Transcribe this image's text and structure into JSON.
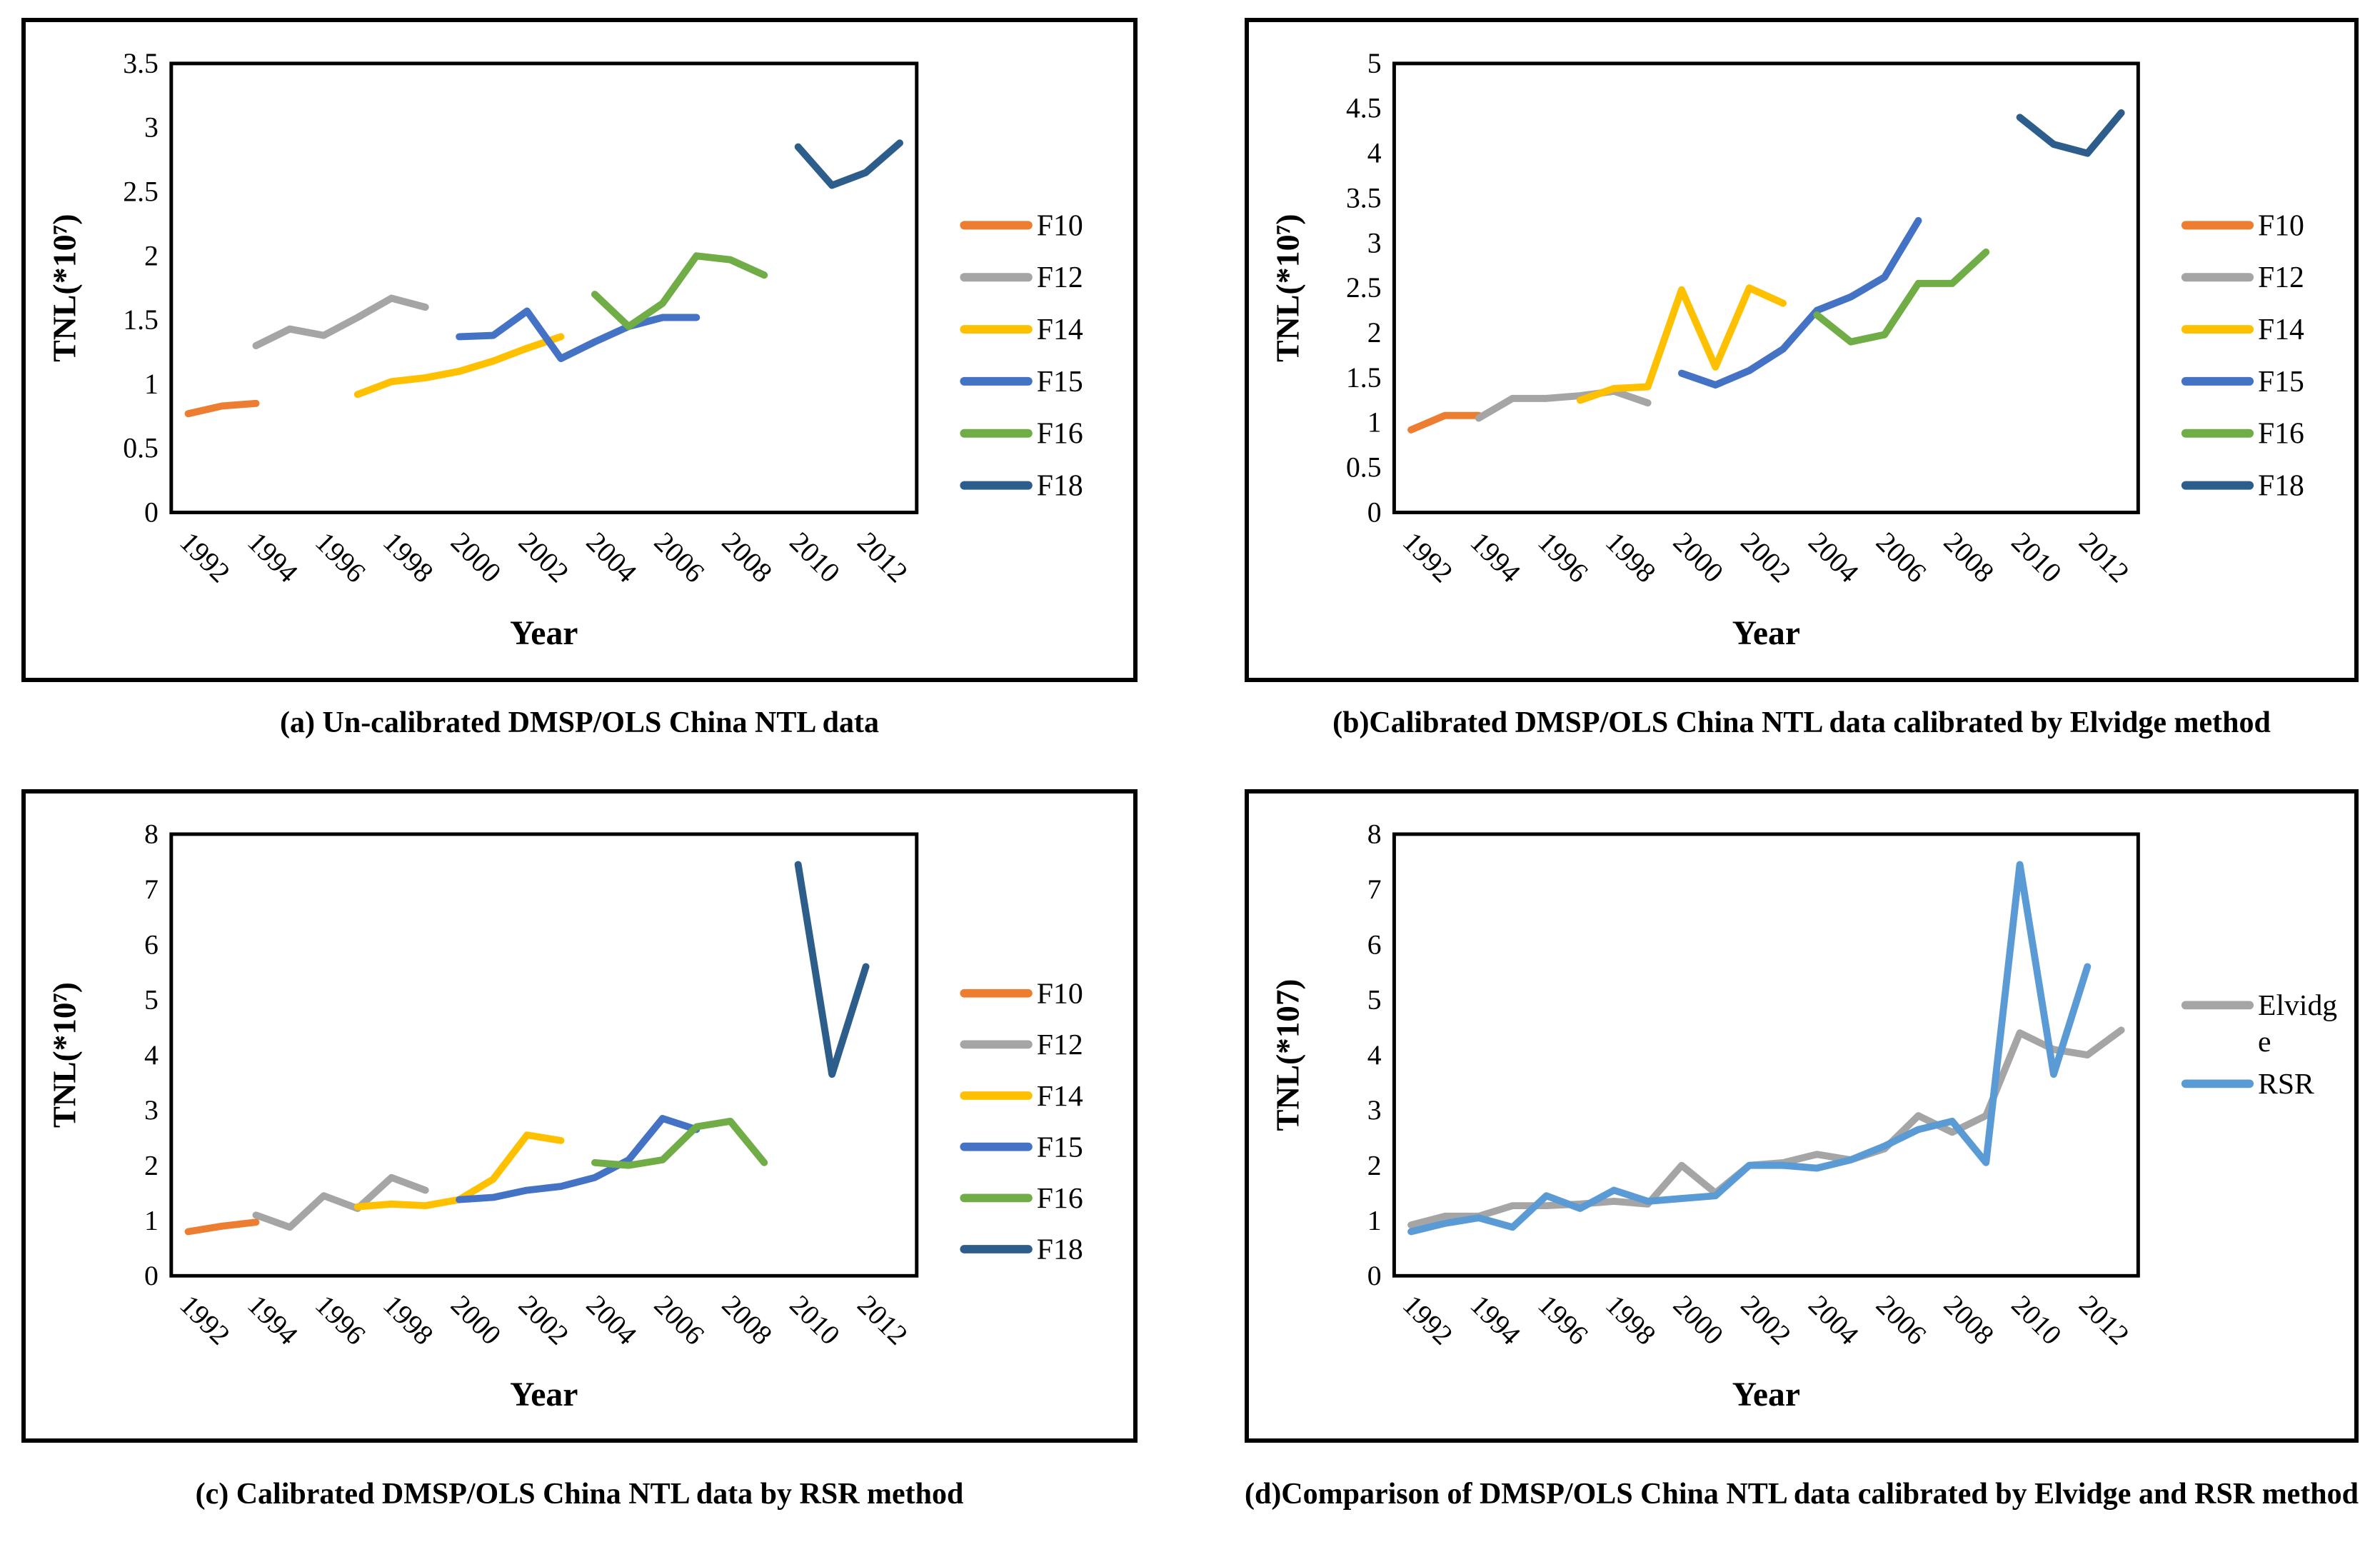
{
  "page": {
    "background": "#ffffff",
    "figure_type": "2x2 line chart grid"
  },
  "chart_data": [
    {
      "id": "a",
      "type": "line",
      "caption": "(a) Un-calibrated DMSP/OLS China NTL data",
      "ylabel": "TNL(*10⁷)",
      "xlabel": "Year",
      "ylim": [
        0,
        3.5
      ],
      "ystep": 0.5,
      "x_start": 1992,
      "x_end": 2013,
      "x_tick_labels": [
        "1992",
        "1994",
        "1996",
        "1998",
        "2000",
        "2002",
        "2004",
        "2006",
        "2008",
        "2010",
        "2012"
      ],
      "grid": false,
      "legend_position": "right",
      "series": [
        {
          "name": "F10",
          "color": "#ED7D31",
          "start_year": 1992,
          "values": [
            0.77,
            0.83,
            0.85
          ]
        },
        {
          "name": "F12",
          "color": "#A5A5A5",
          "start_year": 1994,
          "values": [
            1.3,
            1.43,
            1.38,
            1.52,
            1.67,
            1.6
          ]
        },
        {
          "name": "F14",
          "color": "#FFC000",
          "start_year": 1997,
          "values": [
            0.92,
            1.02,
            1.05,
            1.1,
            1.18,
            1.28,
            1.37
          ]
        },
        {
          "name": "F15",
          "color": "#4472C4",
          "start_year": 2000,
          "values": [
            1.37,
            1.38,
            1.57,
            1.2,
            1.33,
            1.45,
            1.52,
            1.52
          ]
        },
        {
          "name": "F16",
          "color": "#70AD47",
          "start_year": 2004,
          "values": [
            1.7,
            1.45,
            1.63,
            2.0,
            1.97,
            1.85
          ]
        },
        {
          "name": "F18",
          "color": "#2D5E8B",
          "start_year": 2010,
          "values": [
            2.85,
            2.55,
            2.65,
            2.88
          ]
        }
      ]
    },
    {
      "id": "b",
      "type": "line",
      "caption": "(b)Calibrated DMSP/OLS China NTL data calibrated by Elvidge method",
      "ylabel": "TNL(*10⁷)",
      "xlabel": "Year",
      "ylim": [
        0,
        5
      ],
      "ystep": 0.5,
      "x_start": 1992,
      "x_end": 2013,
      "x_tick_labels": [
        "1992",
        "1994",
        "1996",
        "1998",
        "2000",
        "2002",
        "2004",
        "2006",
        "2008",
        "2010",
        "2012"
      ],
      "grid": false,
      "legend_position": "right",
      "series": [
        {
          "name": "F10",
          "color": "#ED7D31",
          "start_year": 1992,
          "values": [
            0.92,
            1.08,
            1.08
          ]
        },
        {
          "name": "F12",
          "color": "#A5A5A5",
          "start_year": 1994,
          "values": [
            1.05,
            1.27,
            1.27,
            1.3,
            1.35,
            1.22
          ]
        },
        {
          "name": "F14",
          "color": "#FFC000",
          "start_year": 1997,
          "values": [
            1.25,
            1.38,
            1.4,
            2.48,
            1.62,
            2.5,
            2.33
          ]
        },
        {
          "name": "F15",
          "color": "#4472C4",
          "start_year": 2000,
          "values": [
            1.55,
            1.42,
            1.58,
            1.82,
            2.25,
            2.4,
            2.62,
            3.25
          ]
        },
        {
          "name": "F16",
          "color": "#70AD47",
          "start_year": 2004,
          "values": [
            2.2,
            1.9,
            1.98,
            2.55,
            2.55,
            2.9
          ]
        },
        {
          "name": "F18",
          "color": "#2D5E8B",
          "start_year": 2010,
          "values": [
            4.4,
            4.1,
            4.0,
            4.45
          ]
        }
      ]
    },
    {
      "id": "c",
      "type": "line",
      "caption": "(c) Calibrated DMSP/OLS China NTL data by RSR method",
      "ylabel": "TNL(*10⁷)",
      "xlabel": "Year",
      "ylim": [
        0,
        8
      ],
      "ystep": 1,
      "x_start": 1992,
      "x_end": 2013,
      "x_tick_labels": [
        "1992",
        "1994",
        "1996",
        "1998",
        "2000",
        "2002",
        "2004",
        "2006",
        "2008",
        "2010",
        "2012"
      ],
      "grid": false,
      "legend_position": "right",
      "series": [
        {
          "name": "F10",
          "color": "#ED7D31",
          "start_year": 1992,
          "values": [
            0.8,
            0.9,
            0.97
          ]
        },
        {
          "name": "F12",
          "color": "#A5A5A5",
          "start_year": 1994,
          "values": [
            1.1,
            0.88,
            1.45,
            1.22,
            1.78,
            1.55
          ]
        },
        {
          "name": "F14",
          "color": "#FFC000",
          "start_year": 1997,
          "values": [
            1.25,
            1.3,
            1.27,
            1.38,
            1.75,
            2.55,
            2.45
          ]
        },
        {
          "name": "F15",
          "color": "#4472C4",
          "start_year": 2000,
          "values": [
            1.38,
            1.42,
            1.55,
            1.62,
            1.78,
            2.1,
            2.85,
            2.65
          ]
        },
        {
          "name": "F16",
          "color": "#70AD47",
          "start_year": 2004,
          "values": [
            2.05,
            2.0,
            2.1,
            2.7,
            2.8,
            2.05
          ]
        },
        {
          "name": "F18",
          "color": "#2D5E8B",
          "start_year": 2010,
          "values": [
            7.45,
            3.65,
            5.6
          ]
        }
      ]
    },
    {
      "id": "d",
      "type": "line",
      "caption": "(d)Comparison of DMSP/OLS China NTL data calibrated by Elvidge and RSR method",
      "ylabel": "TNL(*107)",
      "xlabel": "Year",
      "ylim": [
        0,
        8
      ],
      "ystep": 1,
      "x_start": 1992,
      "x_end": 2013,
      "x_tick_labels": [
        "1992",
        "1994",
        "1996",
        "1998",
        "2000",
        "2002",
        "2004",
        "2006",
        "2008",
        "2010",
        "2012"
      ],
      "grid": false,
      "legend_position": "right",
      "series": [
        {
          "name": "Elvidge",
          "legend_lines": [
            "Elvidg",
            "e"
          ],
          "color": "#A5A5A5",
          "start_year": 1992,
          "values": [
            0.92,
            1.08,
            1.08,
            1.27,
            1.27,
            1.3,
            1.35,
            1.3,
            2.0,
            1.5,
            2.0,
            2.05,
            2.2,
            2.1,
            2.3,
            2.9,
            2.6,
            2.9,
            4.4,
            4.1,
            4.0,
            4.45
          ]
        },
        {
          "name": "RSR",
          "legend_lines": [
            "RSR"
          ],
          "color": "#5B9BD5",
          "start_year": 1992,
          "values": [
            0.8,
            0.95,
            1.05,
            0.88,
            1.45,
            1.22,
            1.55,
            1.35,
            1.4,
            1.45,
            2.0,
            2.0,
            1.95,
            2.1,
            2.35,
            2.65,
            2.8,
            2.05,
            7.45,
            3.65,
            5.6
          ]
        }
      ]
    }
  ]
}
